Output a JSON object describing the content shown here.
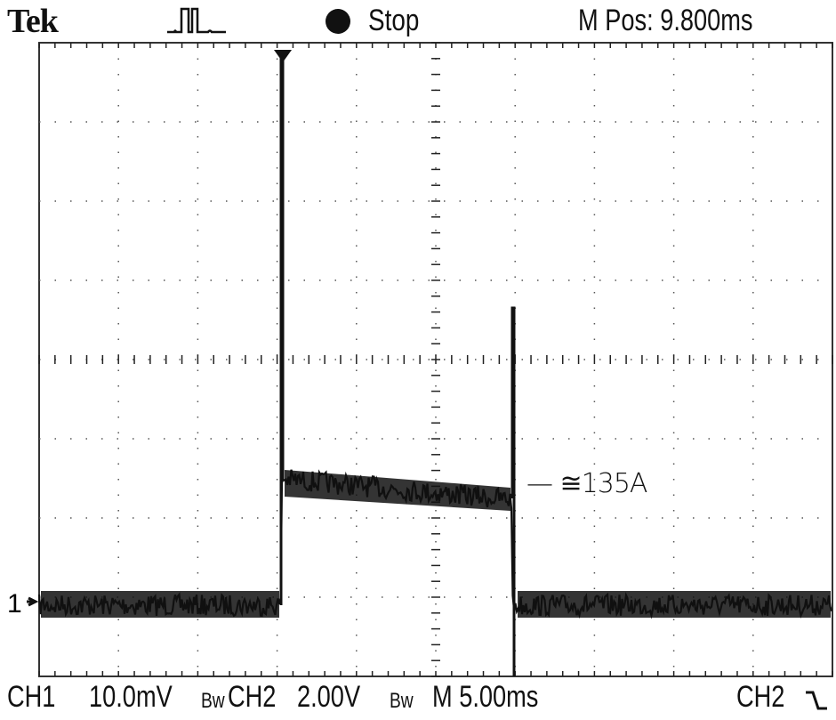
{
  "header": {
    "brand": "Tek",
    "trigger_icon": "pulse-trigger-icon",
    "run_state": "Stop",
    "horizontal_position": "M Pos: 9.800ms"
  },
  "screen": {
    "channel1_marker": "1",
    "trigger_marker_icon": "trigger-position-icon",
    "annotation": "— ≅135A",
    "grid_divisions": {
      "horizontal": 10,
      "vertical": 8
    }
  },
  "footer": {
    "ch1_label": "CH1",
    "ch1_scale": "10.0mV",
    "ch1_bw": "Bw",
    "ch2_label": "CH2",
    "ch2_scale": "2.00V",
    "ch2_bw": "Bw",
    "timebase": "M 5.00ms",
    "trigger_source": "CH2",
    "trigger_slope_icon": "falling-edge-icon"
  },
  "colors": {
    "background": "#ffffff",
    "trace": "#111111",
    "grid": "#333333"
  }
}
